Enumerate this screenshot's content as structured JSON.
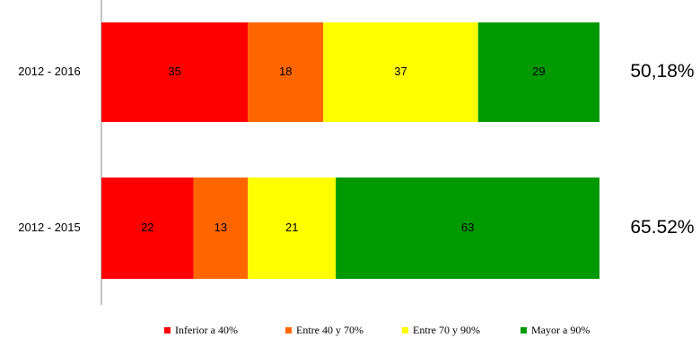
{
  "chart_data": {
    "type": "stacked-barh",
    "categories": [
      "2012 - 2016",
      "2012 - 2015"
    ],
    "series": [
      {
        "name": "Inferior a 40%",
        "color": "#ff0000",
        "values": [
          35,
          22
        ]
      },
      {
        "name": "Entre 40 y 70%",
        "color": "#ff6600",
        "values": [
          18,
          13
        ]
      },
      {
        "name": "Entre 70 y 90%",
        "color": "#ffff00",
        "values": [
          37,
          21
        ]
      },
      {
        "name": "Mayor a 90%",
        "color": "#009900",
        "values": [
          29,
          63
        ]
      }
    ],
    "xlim": [
      0,
      119
    ],
    "annotations": [
      "50,18%",
      "65.52%"
    ],
    "legend": "bottom"
  }
}
